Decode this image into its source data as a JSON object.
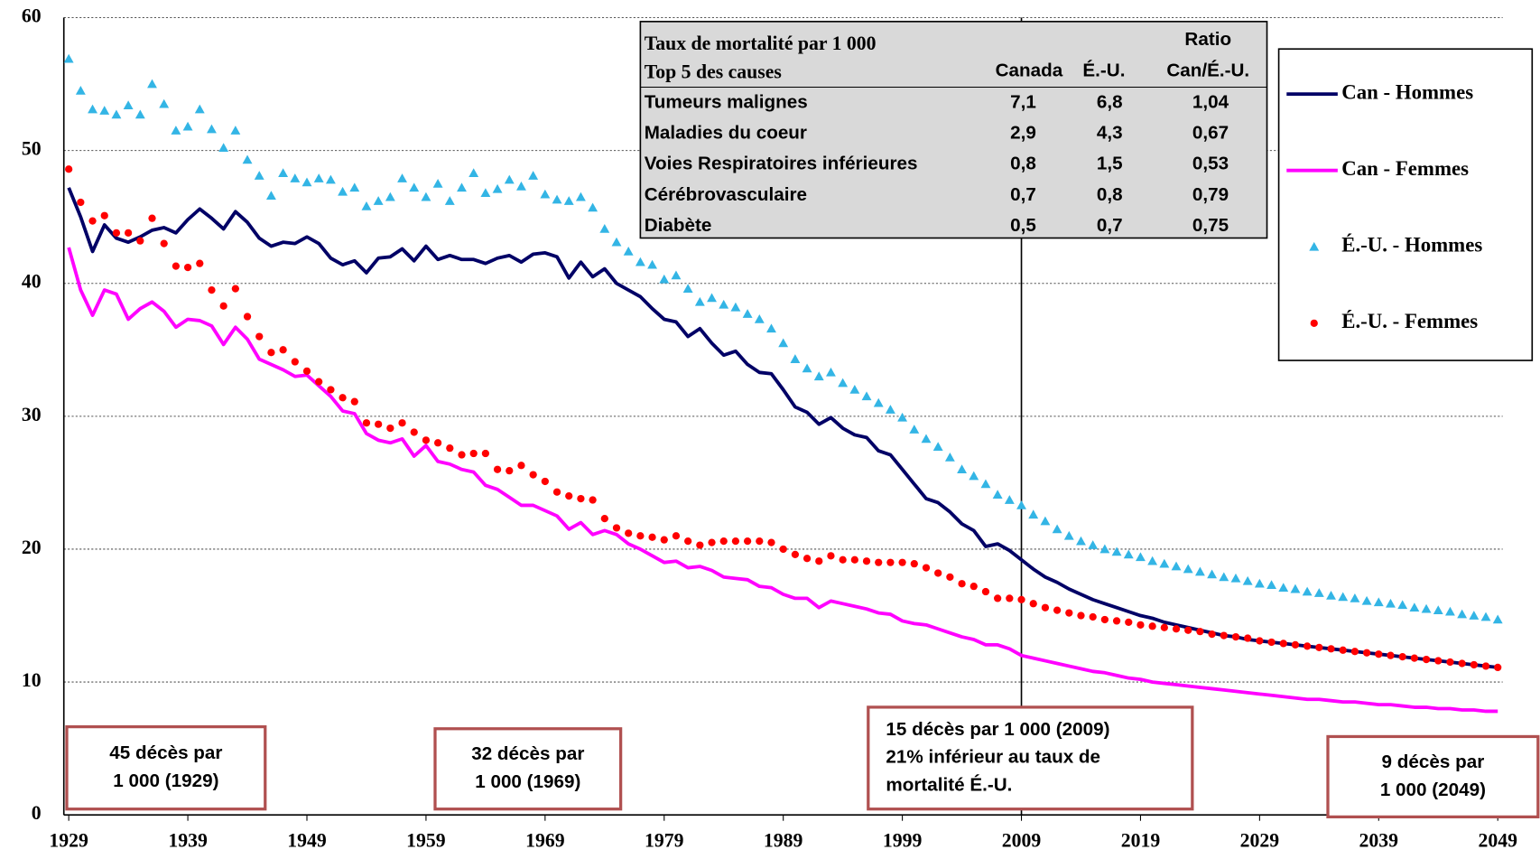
{
  "chart_data": {
    "type": "line",
    "x": [
      1929,
      1930,
      1931,
      1932,
      1933,
      1934,
      1935,
      1936,
      1937,
      1938,
      1939,
      1940,
      1941,
      1942,
      1943,
      1944,
      1945,
      1946,
      1947,
      1948,
      1949,
      1950,
      1951,
      1952,
      1953,
      1954,
      1955,
      1956,
      1957,
      1958,
      1959,
      1960,
      1961,
      1962,
      1963,
      1964,
      1965,
      1966,
      1967,
      1968,
      1969,
      1970,
      1971,
      1972,
      1973,
      1974,
      1975,
      1976,
      1977,
      1978,
      1979,
      1980,
      1981,
      1982,
      1983,
      1984,
      1985,
      1986,
      1987,
      1988,
      1989,
      1990,
      1991,
      1992,
      1993,
      1994,
      1995,
      1996,
      1997,
      1998,
      1999,
      2000,
      2001,
      2002,
      2003,
      2004,
      2005,
      2006,
      2007,
      2008,
      2009,
      2010,
      2011,
      2012,
      2013,
      2014,
      2015,
      2016,
      2017,
      2018,
      2019,
      2020,
      2021,
      2022,
      2023,
      2024,
      2025,
      2026,
      2027,
      2028,
      2029,
      2030,
      2031,
      2032,
      2033,
      2034,
      2035,
      2036,
      2037,
      2038,
      2039,
      2040,
      2041,
      2042,
      2043,
      2044,
      2045,
      2046,
      2047,
      2048,
      2049
    ],
    "series": [
      {
        "name": "Can - Hommes",
        "color": "#000066",
        "marker": "line",
        "values": [
          47.2,
          45.0,
          42.4,
          44.4,
          43.4,
          43.1,
          43.5,
          44.0,
          44.2,
          43.8,
          44.8,
          45.6,
          44.9,
          44.1,
          45.4,
          44.6,
          43.4,
          42.8,
          43.1,
          43.0,
          43.5,
          43.0,
          41.9,
          41.4,
          41.7,
          40.8,
          41.9,
          42.0,
          42.6,
          41.7,
          42.8,
          41.8,
          42.1,
          41.8,
          41.8,
          41.5,
          41.9,
          42.1,
          41.6,
          42.2,
          42.3,
          42.0,
          40.4,
          41.6,
          40.5,
          41.1,
          40.0,
          39.5,
          39.0,
          38.1,
          37.3,
          37.1,
          36.0,
          36.6,
          35.5,
          34.6,
          34.9,
          33.9,
          33.3,
          33.2,
          32.0,
          30.7,
          30.3,
          29.4,
          29.9,
          29.1,
          28.6,
          28.4,
          27.4,
          27.1,
          26.0,
          24.9,
          23.8,
          23.5,
          22.8,
          21.9,
          21.4,
          20.2,
          20.4,
          19.9,
          19.2,
          18.5,
          17.9,
          17.5,
          17.0,
          16.6,
          16.2,
          15.9,
          15.6,
          15.3,
          15.0,
          14.8,
          14.5,
          14.3,
          14.1,
          13.9,
          13.7,
          13.5,
          13.4,
          13.2,
          13.1,
          13.0,
          12.9,
          12.8,
          12.7,
          12.6,
          12.5,
          12.4,
          12.3,
          12.2,
          12.1,
          12.0,
          11.9,
          11.8,
          11.7,
          11.6,
          11.5,
          11.4,
          11.3,
          11.2,
          11.1
        ]
      },
      {
        "name": "Can - Femmes",
        "color": "#ff00ff",
        "marker": "line",
        "values": [
          42.7,
          39.5,
          37.6,
          39.5,
          39.2,
          37.3,
          38.1,
          38.6,
          37.9,
          36.7,
          37.3,
          37.2,
          36.8,
          35.4,
          36.7,
          35.8,
          34.3,
          33.9,
          33.5,
          33.0,
          33.1,
          32.3,
          31.5,
          30.4,
          30.2,
          28.7,
          28.2,
          28.0,
          28.3,
          27.0,
          27.8,
          26.6,
          26.4,
          26.0,
          25.8,
          24.8,
          24.5,
          23.9,
          23.3,
          23.3,
          22.9,
          22.5,
          21.5,
          22.0,
          21.1,
          21.4,
          21.1,
          20.4,
          20.0,
          19.5,
          19.0,
          19.1,
          18.6,
          18.7,
          18.4,
          17.9,
          17.8,
          17.7,
          17.2,
          17.1,
          16.6,
          16.3,
          16.3,
          15.6,
          16.1,
          15.9,
          15.7,
          15.5,
          15.2,
          15.1,
          14.6,
          14.4,
          14.3,
          14.0,
          13.7,
          13.4,
          13.2,
          12.8,
          12.8,
          12.5,
          12.0,
          11.8,
          11.6,
          11.4,
          11.2,
          11.0,
          10.8,
          10.7,
          10.5,
          10.3,
          10.2,
          10.0,
          9.9,
          9.8,
          9.7,
          9.6,
          9.5,
          9.4,
          9.3,
          9.2,
          9.1,
          9.0,
          8.9,
          8.8,
          8.7,
          8.7,
          8.6,
          8.5,
          8.5,
          8.4,
          8.3,
          8.3,
          8.2,
          8.1,
          8.1,
          8.0,
          8.0,
          7.9,
          7.9,
          7.8,
          7.8
        ]
      },
      {
        "name": "É.-U. - Hommes",
        "color": "#33b5e5",
        "marker": "triangle",
        "values": [
          56.9,
          54.5,
          53.1,
          53.0,
          52.7,
          53.4,
          52.7,
          55.0,
          53.5,
          51.5,
          51.8,
          53.1,
          51.6,
          50.2,
          51.5,
          49.3,
          48.1,
          46.6,
          48.3,
          47.9,
          47.6,
          47.9,
          47.8,
          46.9,
          47.2,
          45.8,
          46.2,
          46.5,
          47.9,
          47.2,
          46.5,
          47.5,
          46.2,
          47.2,
          48.3,
          46.8,
          47.1,
          47.8,
          47.3,
          48.1,
          46.7,
          46.3,
          46.2,
          46.5,
          45.7,
          44.1,
          43.1,
          42.4,
          41.6,
          41.4,
          40.3,
          40.6,
          39.6,
          38.6,
          38.9,
          38.4,
          38.2,
          37.7,
          37.3,
          36.6,
          35.5,
          34.3,
          33.6,
          33.0,
          33.3,
          32.5,
          32.0,
          31.5,
          31.0,
          30.5,
          29.9,
          29.0,
          28.3,
          27.7,
          26.9,
          26.0,
          25.5,
          24.9,
          24.1,
          23.7,
          23.3,
          22.6,
          22.1,
          21.5,
          21.0,
          20.6,
          20.3,
          20.0,
          19.8,
          19.6,
          19.4,
          19.1,
          18.9,
          18.7,
          18.5,
          18.3,
          18.1,
          17.9,
          17.8,
          17.6,
          17.4,
          17.3,
          17.1,
          17.0,
          16.8,
          16.7,
          16.5,
          16.4,
          16.3,
          16.1,
          16.0,
          15.9,
          15.8,
          15.6,
          15.5,
          15.4,
          15.3,
          15.1,
          15.0,
          14.9,
          14.7
        ]
      },
      {
        "name": "É.-U. - Femmes",
        "color": "#ff0000",
        "marker": "circle",
        "values": [
          48.6,
          46.1,
          44.7,
          45.1,
          43.8,
          43.8,
          43.2,
          44.9,
          43.0,
          41.3,
          41.2,
          41.5,
          39.5,
          38.3,
          39.6,
          37.5,
          36.0,
          34.8,
          35.0,
          34.1,
          33.4,
          32.6,
          32.0,
          31.4,
          31.1,
          29.5,
          29.4,
          29.1,
          29.5,
          28.8,
          28.2,
          28.0,
          27.6,
          27.1,
          27.2,
          27.2,
          26.0,
          25.9,
          26.3,
          25.6,
          25.1,
          24.3,
          24.0,
          23.8,
          23.7,
          22.3,
          21.6,
          21.2,
          21.0,
          20.9,
          20.7,
          21.0,
          20.6,
          20.3,
          20.5,
          20.6,
          20.6,
          20.6,
          20.6,
          20.5,
          20.0,
          19.6,
          19.3,
          19.1,
          19.5,
          19.2,
          19.2,
          19.1,
          19.0,
          19.0,
          19.0,
          18.9,
          18.6,
          18.2,
          17.9,
          17.4,
          17.2,
          16.8,
          16.3,
          16.3,
          16.2,
          15.9,
          15.6,
          15.4,
          15.2,
          15.0,
          14.9,
          14.7,
          14.6,
          14.5,
          14.3,
          14.2,
          14.1,
          14.0,
          13.9,
          13.8,
          13.6,
          13.5,
          13.4,
          13.3,
          13.1,
          13.0,
          12.9,
          12.8,
          12.7,
          12.6,
          12.5,
          12.4,
          12.3,
          12.2,
          12.1,
          12.0,
          11.9,
          11.8,
          11.7,
          11.6,
          11.5,
          11.4,
          11.3,
          11.2,
          11.1
        ]
      }
    ],
    "xlim": [
      1929,
      2049
    ],
    "xticks": [
      1929,
      1939,
      1949,
      1959,
      1969,
      1979,
      1989,
      1999,
      2009,
      2019,
      2029,
      2039,
      2049
    ],
    "ylim": [
      0,
      60
    ],
    "yticks": [
      0,
      10,
      20,
      30,
      40,
      50,
      60
    ],
    "grid": true,
    "legend": "right",
    "vline": 2009,
    "table": {
      "title": [
        "Taux de mortalité par 1 000",
        "Top 5 des causes"
      ],
      "columns": [
        "Canada",
        "É.-U."
      ],
      "ratio_header": [
        "Ratio",
        "Can/É.-U."
      ],
      "rows": [
        [
          "Tumeurs malignes",
          "7,1",
          "6,8",
          "1,04"
        ],
        [
          "Maladies du coeur",
          "2,9",
          "4,3",
          "0,67"
        ],
        [
          "Voies Respiratoires inférieures",
          "0,8",
          "1,5",
          "0,53"
        ],
        [
          "Cérébrovasculaire",
          "0,7",
          "0,8",
          "0,79"
        ],
        [
          "Diabète",
          "0,5",
          "0,7",
          "0,75"
        ]
      ]
    },
    "annotations": [
      [
        "45 décès par",
        "1 000 (1929)"
      ],
      [
        "32 décès par",
        "1 000 (1969)"
      ],
      [
        "15 décès par 1 000 (2009)",
        "21% inférieur au taux de",
        "mortalité É.-U."
      ],
      [
        "9 décès par",
        "1 000 (2049)"
      ]
    ]
  }
}
